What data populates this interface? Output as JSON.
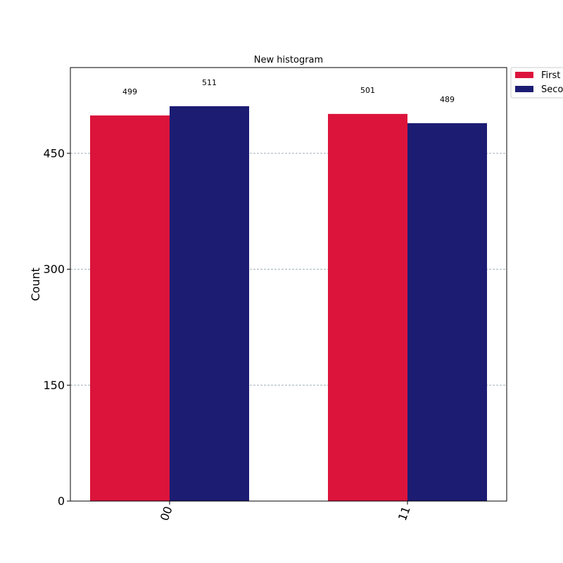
{
  "chart_data": {
    "type": "bar",
    "title": "New histogram",
    "xlabel": "",
    "ylabel": "Count",
    "categories": [
      "00",
      "11"
    ],
    "series": [
      {
        "name": "First",
        "color": "#dc143c",
        "values": [
          499,
          501
        ]
      },
      {
        "name": "Second",
        "color": "#1c1c73",
        "values": [
          511,
          489
        ]
      }
    ],
    "ylim": [
      0,
      561
    ],
    "yticks": [
      0,
      150,
      300,
      450
    ],
    "ytick_labels": [
      "0",
      "150",
      "300",
      "450"
    ],
    "grid": "y-dashed",
    "legend_position": "outside-top-right"
  }
}
